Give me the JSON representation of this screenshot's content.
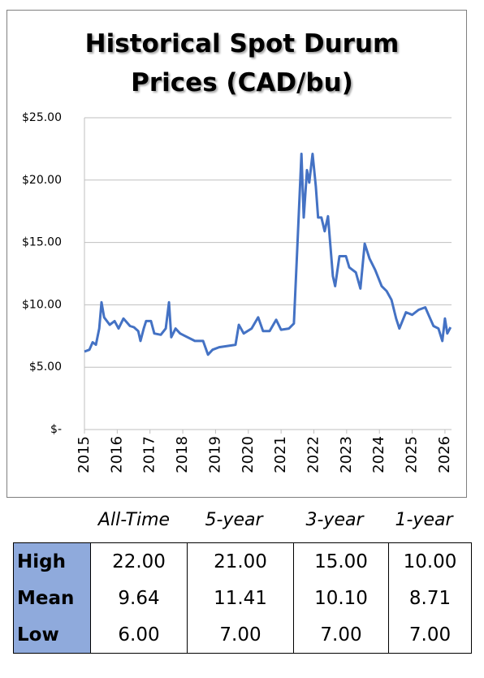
{
  "chart_data": {
    "type": "line",
    "title": "Historical Spot Durum Prices (CAD/bu)",
    "x": [
      2015.0,
      2015.15,
      2015.25,
      2015.35,
      2015.45,
      2015.52,
      2015.6,
      2015.77,
      2015.92,
      2016.04,
      2016.19,
      2016.39,
      2016.51,
      2016.64,
      2016.71,
      2016.81,
      2016.88,
      2017.03,
      2017.13,
      2017.33,
      2017.48,
      2017.58,
      2017.65,
      2017.78,
      2017.92,
      2018.07,
      2018.37,
      2018.62,
      2018.77,
      2018.91,
      2019.11,
      2019.36,
      2019.61,
      2019.71,
      2019.86,
      2020.1,
      2020.3,
      2020.45,
      2020.65,
      2020.85,
      2021.0,
      2021.24,
      2021.39,
      2021.49,
      2021.62,
      2021.69,
      2021.79,
      2021.86,
      2021.96,
      2022.06,
      2022.13,
      2022.23,
      2022.33,
      2022.43,
      2022.58,
      2022.65,
      2022.78,
      2022.98,
      2023.08,
      2023.28,
      2023.42,
      2023.55,
      2023.7,
      2023.87,
      2024.07,
      2024.22,
      2024.37,
      2024.51,
      2024.61,
      2024.81,
      2025.0,
      2025.2,
      2025.4,
      2025.5,
      2025.65,
      2025.8,
      2025.92,
      2026.0,
      2026.07,
      2026.17
    ],
    "values": [
      6.25,
      6.4,
      7.0,
      6.8,
      8.1,
      10.2,
      9.0,
      8.4,
      8.7,
      8.1,
      8.9,
      8.3,
      8.2,
      7.9,
      7.1,
      8.1,
      8.7,
      8.7,
      7.7,
      7.6,
      8.1,
      10.2,
      7.4,
      8.1,
      7.7,
      7.5,
      7.1,
      7.1,
      6.0,
      6.4,
      6.6,
      6.7,
      6.8,
      8.4,
      7.7,
      8.1,
      9.0,
      7.9,
      7.9,
      8.8,
      8.0,
      8.1,
      8.5,
      14.3,
      22.1,
      17.0,
      20.8,
      19.8,
      22.1,
      19.5,
      17.0,
      17.0,
      15.9,
      17.1,
      12.3,
      11.5,
      13.9,
      13.9,
      13.0,
      12.6,
      11.3,
      14.9,
      13.7,
      12.8,
      11.5,
      11.1,
      10.4,
      8.9,
      8.1,
      9.4,
      9.2,
      9.6,
      9.8,
      9.2,
      8.3,
      8.1,
      7.1,
      8.9,
      7.7,
      8.2
    ],
    "color": "#4472c4",
    "xlim": [
      2015,
      2026.2
    ],
    "xticks": [
      2015,
      2016,
      2017,
      2018,
      2019,
      2020,
      2021,
      2022,
      2023,
      2024,
      2025,
      2026
    ],
    "ylim": [
      0,
      25
    ],
    "yticks": [
      {
        "value": 0,
        "label": "$-"
      },
      {
        "value": 5,
        "label": "$5.00"
      },
      {
        "value": 10,
        "label": "$10.00"
      },
      {
        "value": 15,
        "label": "$15.00"
      },
      {
        "value": 20,
        "label": "$20.00"
      },
      {
        "value": 25,
        "label": "$25.00"
      }
    ],
    "grid": true
  },
  "table": {
    "columns": [
      "All-Time",
      "5-year",
      "3-year",
      "1-year"
    ],
    "rows": [
      [
        "High",
        "22.00",
        "21.00",
        "15.00",
        "10.00"
      ],
      [
        "Mean",
        "9.64",
        "11.41",
        "10.10",
        "8.71"
      ],
      [
        "Low",
        "6.00",
        "7.00",
        "7.00",
        "7.00"
      ]
    ]
  }
}
